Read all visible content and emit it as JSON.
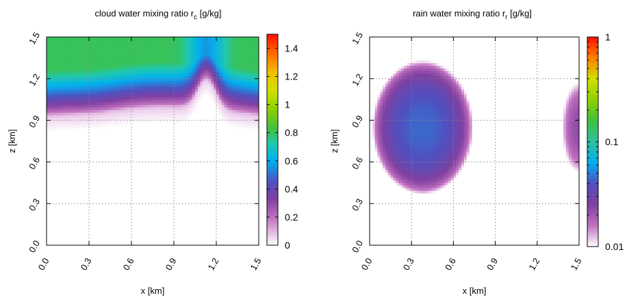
{
  "chart_data": [
    {
      "type": "heatmap",
      "title": "cloud water mixing ratio r",
      "title_subscript": "c",
      "title_unit": " [g/kg]",
      "xlabel": "x [km]",
      "ylabel": "z [km]",
      "xlim": [
        0,
        1.5
      ],
      "ylim": [
        0,
        1.5
      ],
      "x_ticks": [
        "0.0",
        "0.3",
        "0.6",
        "0.9",
        "1.2",
        "1.5"
      ],
      "y_ticks": [
        "0.0",
        "0.3",
        "0.6",
        "0.9",
        "1.2",
        "1.5"
      ],
      "grid": true,
      "colorbar": {
        "scale": "linear",
        "range": [
          0,
          1.5
        ],
        "ticks": [
          "0",
          "0.2",
          "0.4",
          "0.6",
          "0.8",
          "1",
          "1.2",
          "1.4"
        ]
      },
      "field_features": {
        "cloud_top_km": 1.5,
        "cloud_base_km": 0.85,
        "peak_value_near_top": 0.8,
        "bump_center_x_km": 1.13,
        "bump_base_km": 1.08
      }
    },
    {
      "type": "heatmap",
      "title": "rain water mixing ratio r",
      "title_subscript": "r",
      "title_unit": " [g/kg]",
      "xlabel": "x [km]",
      "ylabel": "z [km]",
      "xlim": [
        0,
        1.5
      ],
      "ylim": [
        0,
        1.5
      ],
      "x_ticks": [
        "0.0",
        "0.3",
        "0.6",
        "0.9",
        "1.2",
        "1.5"
      ],
      "y_ticks": [
        "0.0",
        "0.3",
        "0.6",
        "0.9",
        "1.2",
        "1.5"
      ],
      "grid": true,
      "colorbar": {
        "scale": "log",
        "range": [
          0.01,
          1
        ],
        "ticks": [
          "0.01",
          "0.1",
          "1"
        ]
      },
      "field_features": {
        "main_blob_center_km": [
          0.38,
          0.85
        ],
        "main_blob_peak": 0.035,
        "side_blob_center_km": [
          1.5,
          0.85
        ],
        "side_blob_peak": 0.015
      }
    }
  ]
}
